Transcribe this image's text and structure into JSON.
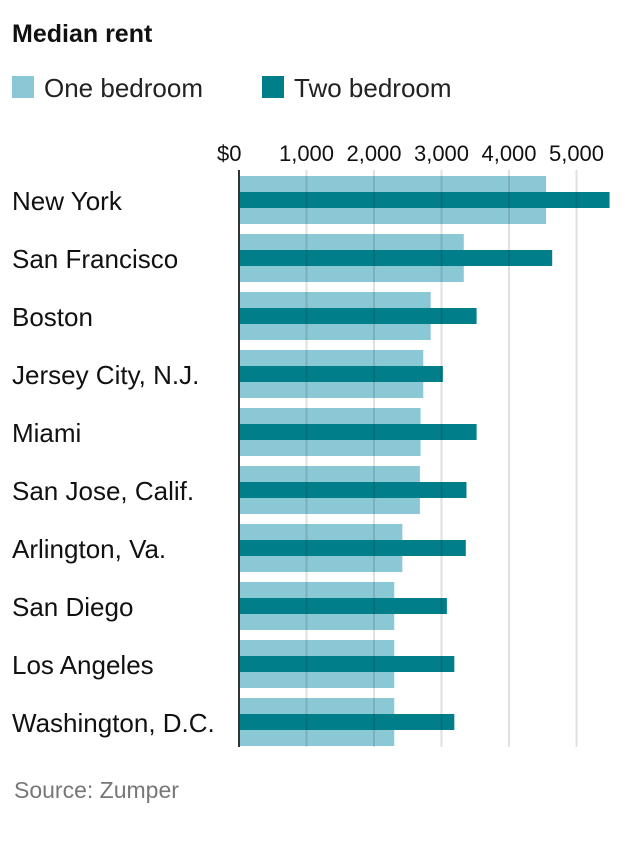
{
  "chart_data": {
    "type": "bar",
    "orientation": "horizontal",
    "title": "Median rent",
    "source": "Source: Zumper",
    "categories": [
      "New York",
      "San Francisco",
      "Boston",
      "Jersey City, N.J.",
      "Miami",
      "San Jose, Calif.",
      "Arlington, Va.",
      "San Diego",
      "Los Angeles",
      "Washington, D.C."
    ],
    "series": [
      {
        "name": "One bedroom",
        "color": "#8bc8d6",
        "values": [
          4550,
          3330,
          2840,
          2730,
          2690,
          2680,
          2420,
          2300,
          2300,
          2300
        ]
      },
      {
        "name": "Two bedroom",
        "color": "#007f8a",
        "values": [
          5490,
          4640,
          3520,
          3020,
          3520,
          3370,
          3360,
          3080,
          3190,
          3190
        ]
      }
    ],
    "xlim": [
      0,
      5500
    ],
    "ticks": [
      0,
      1000,
      2000,
      3000,
      4000,
      5000
    ],
    "tick_labels": [
      "$0",
      "1,000",
      "2,000",
      "3,000",
      "4,000",
      "5,000"
    ],
    "grid": true,
    "legend_position": "top-left"
  }
}
